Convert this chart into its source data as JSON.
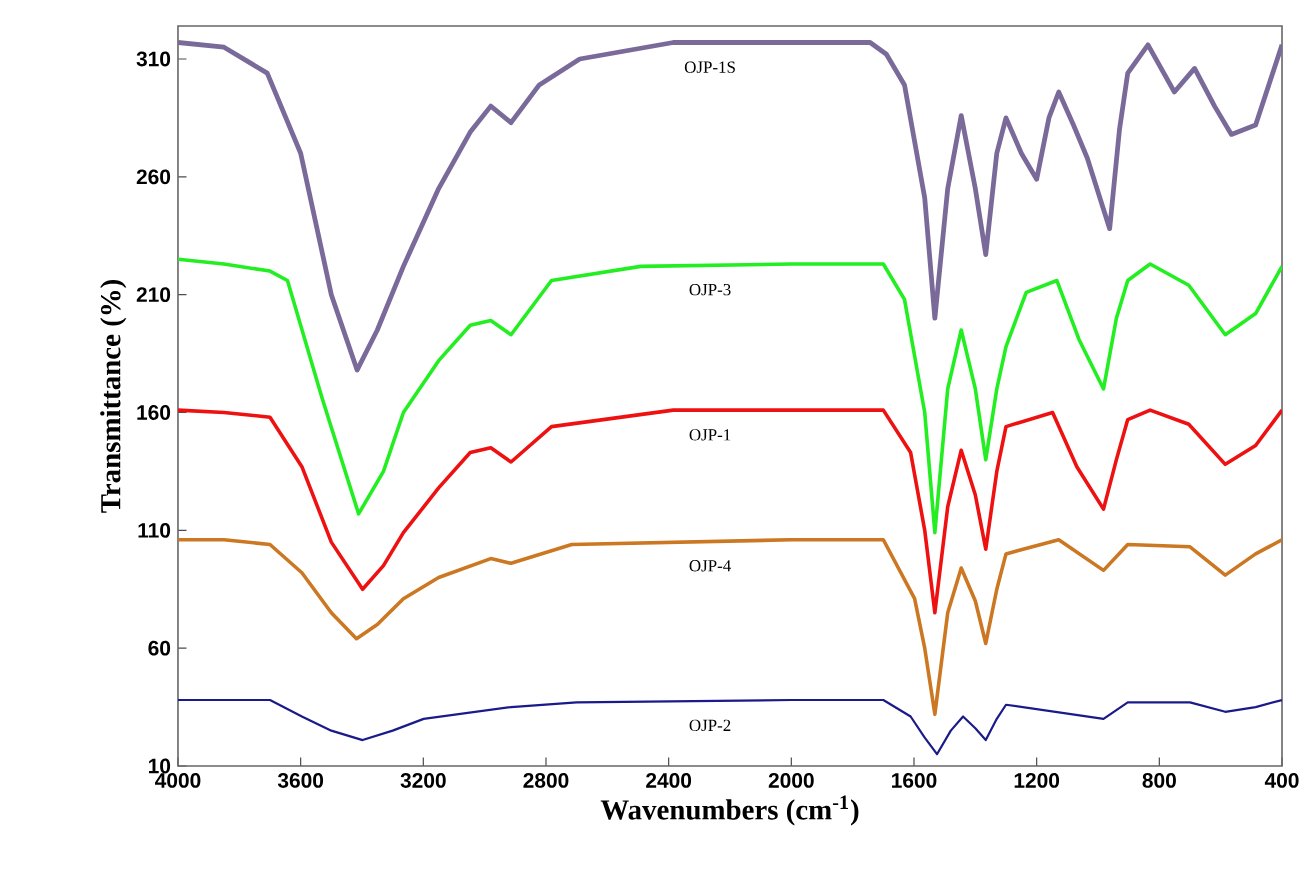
{
  "chart_data": {
    "type": "line",
    "xlabel": "Wavenumbers (cm$^{-1}$)",
    "ylabel": "Transmittance (%)",
    "xlim": [
      4000,
      400
    ],
    "ylim": [
      10,
      324
    ],
    "xticks": [
      4000,
      3600,
      3200,
      2800,
      2400,
      2000,
      1600,
      1200,
      800,
      400
    ],
    "yticks": [
      10,
      60,
      110,
      160,
      210,
      260,
      310
    ],
    "grid": false,
    "marker": "none",
    "line_style": "solid",
    "series": [
      {
        "name": "OJP-1S",
        "color": "#7a6a9a",
        "x": [
          4000,
          3850,
          3709,
          3600,
          3500,
          3416,
          3350,
          3265,
          3150,
          3047,
          2980,
          2914,
          2822,
          2690,
          2385,
          2000,
          1743,
          1690,
          1631,
          1565,
          1532,
          1490,
          1446,
          1400,
          1366,
          1330,
          1300,
          1250,
          1200,
          1160,
          1128,
          1080,
          1035,
          962,
          930,
          903,
          837,
          751,
          685,
          620,
          565,
          486,
          400
        ],
        "values": [
          317,
          315,
          304,
          270,
          210,
          178,
          195,
          222,
          255,
          279,
          290,
          283,
          299,
          310,
          317,
          317,
          317,
          312,
          299,
          251,
          200,
          255,
          286,
          255,
          227,
          270,
          285,
          270,
          259,
          285,
          296,
          282,
          268,
          238,
          280,
          304,
          316,
          296,
          306,
          290,
          278,
          282,
          316
        ]
      },
      {
        "name": "OJP-3",
        "color": "#22ee22",
        "x": [
          4000,
          3850,
          3700,
          3643,
          3530,
          3411,
          3330,
          3265,
          3150,
          3047,
          2980,
          2914,
          2782,
          2491,
          2000,
          1700,
          1631,
          1565,
          1532,
          1490,
          1446,
          1400,
          1366,
          1330,
          1300,
          1234,
          1134,
          1062,
          982,
          940,
          903,
          830,
          704,
          585,
          486,
          400
        ],
        "values": [
          225,
          223,
          220,
          216,
          166,
          117,
          135,
          160,
          182,
          197,
          199,
          193,
          216,
          222,
          223,
          223,
          208,
          160,
          109,
          170,
          195,
          170,
          140,
          170,
          188,
          211,
          216,
          191,
          170,
          200,
          216,
          223,
          214,
          193,
          202,
          222
        ]
      },
      {
        "name": "OJP-1",
        "color": "#ee1111",
        "x": [
          4000,
          3850,
          3700,
          3596,
          3500,
          3398,
          3330,
          3265,
          3150,
          3047,
          2980,
          2914,
          2782,
          2385,
          2000,
          1700,
          1611,
          1565,
          1532,
          1490,
          1446,
          1400,
          1366,
          1330,
          1300,
          1148,
          1069,
          982,
          940,
          903,
          830,
          704,
          585,
          486,
          400
        ],
        "values": [
          161,
          160,
          158,
          137,
          105,
          85,
          95,
          109,
          128,
          143,
          145,
          139,
          154,
          161,
          161,
          161,
          143,
          110,
          75,
          120,
          144,
          125,
          102,
          135,
          154,
          160,
          137,
          119,
          140,
          157,
          161,
          155,
          138,
          146,
          161
        ]
      },
      {
        "name": "OJP-4",
        "color": "#cc7722",
        "x": [
          4000,
          3850,
          3700,
          3596,
          3500,
          3418,
          3350,
          3265,
          3150,
          2980,
          2914,
          2716,
          2000,
          1700,
          1598,
          1565,
          1532,
          1490,
          1446,
          1400,
          1366,
          1330,
          1300,
          1128,
          982,
          903,
          700,
          585,
          486,
          400
        ],
        "values": [
          106,
          106,
          104,
          92,
          75,
          64,
          70,
          81,
          90,
          98,
          96,
          104,
          106,
          106,
          81,
          60,
          32,
          75,
          94,
          80,
          62,
          85,
          100,
          106,
          93,
          104,
          103,
          91,
          100,
          106
        ]
      },
      {
        "name": "OJP-2",
        "color": "#1a1a8a",
        "x": [
          4000,
          3700,
          3596,
          3500,
          3398,
          3300,
          3199,
          2914,
          2700,
          2000,
          1700,
          1611,
          1565,
          1525,
          1480,
          1440,
          1400,
          1366,
          1330,
          1300,
          982,
          903,
          700,
          585,
          486,
          400
        ],
        "values": [
          38,
          38,
          31,
          25,
          21,
          25,
          30,
          35,
          37,
          38,
          38,
          31,
          22,
          15,
          25,
          31,
          26,
          21,
          30,
          36,
          30,
          37,
          37,
          33,
          35,
          38
        ]
      }
    ]
  }
}
